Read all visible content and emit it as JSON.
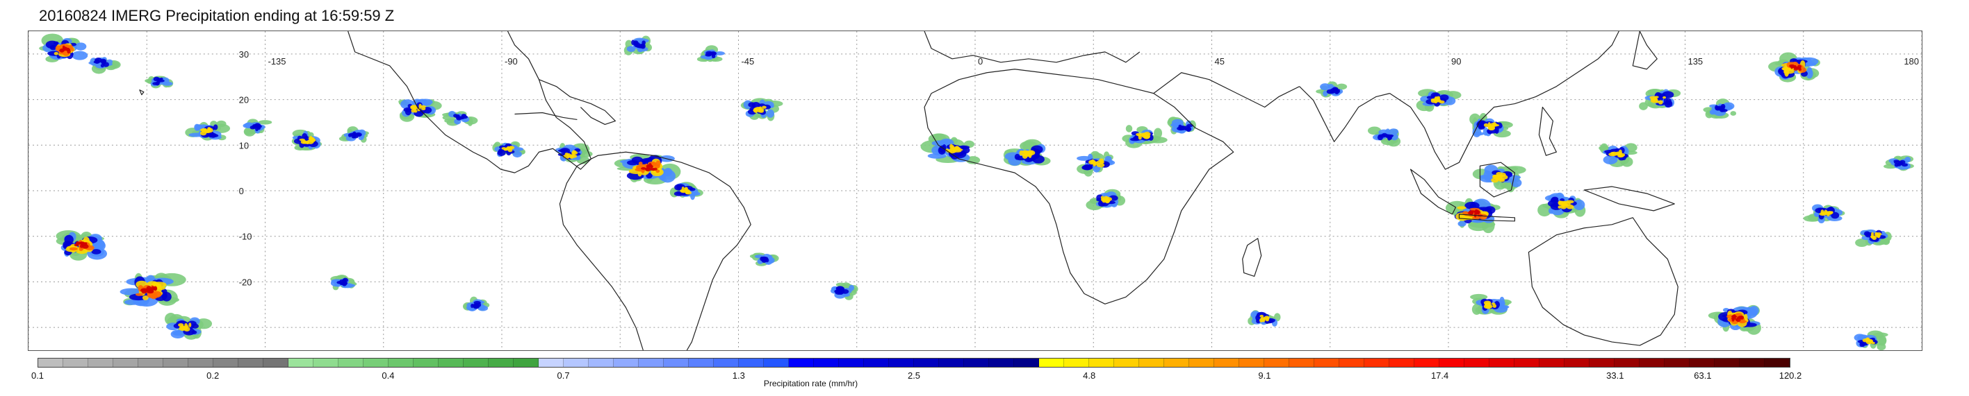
{
  "title": "20160824 IMERG Precipitation ending at 16:59:59 Z",
  "map": {
    "lon_labels": [
      {
        "text": "-135",
        "lon": -135
      },
      {
        "text": "-90",
        "lon": -90
      },
      {
        "text": "-45",
        "lon": -45
      },
      {
        "text": "0",
        "lon": 0
      },
      {
        "text": "45",
        "lon": 45
      },
      {
        "text": "90",
        "lon": 90
      },
      {
        "text": "135",
        "lon": 135
      },
      {
        "text": "180",
        "lon": 180
      }
    ],
    "lat_labels": [
      {
        "text": "30",
        "lat": 30
      },
      {
        "text": "20",
        "lat": 20
      },
      {
        "text": "10",
        "lat": 10
      },
      {
        "text": "0",
        "lat": 0
      },
      {
        "text": "-10",
        "lat": -10
      },
      {
        "text": "-20",
        "lat": -20
      }
    ],
    "lon_range": [
      -180,
      180
    ],
    "lat_range": [
      -35,
      35
    ],
    "grid": "dotted",
    "colors": {
      "coastline": "#222222",
      "grid": "#9a9a9a",
      "background": "#ffffff"
    }
  },
  "colorbar": {
    "title": "Precipitation rate (mm/hr)",
    "tick_labels": [
      {
        "text": "0.1",
        "frac": 0.0
      },
      {
        "text": "0.2",
        "frac": 0.1
      },
      {
        "text": "0.4",
        "frac": 0.2
      },
      {
        "text": "0.7",
        "frac": 0.3
      },
      {
        "text": "1.3",
        "frac": 0.4
      },
      {
        "text": "2.5",
        "frac": 0.5
      },
      {
        "text": "4.8",
        "frac": 0.6
      },
      {
        "text": "9.1",
        "frac": 0.7
      },
      {
        "text": "17.4",
        "frac": 0.8
      },
      {
        "text": "33.1",
        "frac": 0.9
      },
      {
        "text": "63.1",
        "frac": 0.95
      },
      {
        "text": "120.2",
        "frac": 1.0
      }
    ],
    "colors": [
      "#bdbdbd",
      "#b5b5b5",
      "#adadad",
      "#a5a5a5",
      "#9d9d9d",
      "#959595",
      "#8d8d8d",
      "#858585",
      "#7d7d7d",
      "#757575",
      "#9be39b",
      "#8fdc8f",
      "#83d583",
      "#77ce77",
      "#6cc76c",
      "#61c061",
      "#57b957",
      "#4eb24e",
      "#46ab46",
      "#3fa43f",
      "#c6d3ff",
      "#b4c6ff",
      "#a2b8ff",
      "#90aaff",
      "#7e9cff",
      "#6c8eff",
      "#5a80ff",
      "#4872ff",
      "#3664ff",
      "#2456ff",
      "#0000ff",
      "#0000f2",
      "#0000e5",
      "#0000d8",
      "#0000cb",
      "#0000be",
      "#0000b1",
      "#0000a4",
      "#000097",
      "#00008a",
      "#ffff00",
      "#ffef00",
      "#ffdf00",
      "#ffcf00",
      "#ffbf00",
      "#ffaf00",
      "#ff9f00",
      "#ff8f00",
      "#ff7f00",
      "#ff6f00",
      "#ff5f00",
      "#ff5000",
      "#ff4000",
      "#ff3000",
      "#ff2000",
      "#ff1000",
      "#f80000",
      "#ee0000",
      "#e40000",
      "#da0000",
      "#c80000",
      "#b80000",
      "#a80000",
      "#980000",
      "#880000",
      "#7a0000",
      "#6e0000",
      "#620000",
      "#560000",
      "#4a0000"
    ]
  },
  "precip_clusters": [
    {
      "lon": -173,
      "lat": 31,
      "r": 18,
      "i": 4
    },
    {
      "lon": -166,
      "lat": 28,
      "r": 12,
      "i": 2
    },
    {
      "lon": -155,
      "lat": 24,
      "r": 10,
      "i": 2
    },
    {
      "lon": -146,
      "lat": 13,
      "r": 14,
      "i": 3
    },
    {
      "lon": -137,
      "lat": 14,
      "r": 10,
      "i": 2
    },
    {
      "lon": -127,
      "lat": 11,
      "r": 14,
      "i": 3
    },
    {
      "lon": -118,
      "lat": 12,
      "r": 10,
      "i": 2
    },
    {
      "lon": -106,
      "lat": 18,
      "r": 16,
      "i": 3
    },
    {
      "lon": -98,
      "lat": 16,
      "r": 10,
      "i": 2
    },
    {
      "lon": -89,
      "lat": 9,
      "r": 12,
      "i": 3
    },
    {
      "lon": -77,
      "lat": 8,
      "r": 14,
      "i": 3
    },
    {
      "lon": -62,
      "lat": 5,
      "r": 22,
      "i": 4
    },
    {
      "lon": -55,
      "lat": 0,
      "r": 12,
      "i": 3
    },
    {
      "lon": -50,
      "lat": 30,
      "r": 10,
      "i": 2
    },
    {
      "lon": -64,
      "lat": 32,
      "r": 12,
      "i": 2
    },
    {
      "lon": -41,
      "lat": 18,
      "r": 14,
      "i": 3
    },
    {
      "lon": -4,
      "lat": 9,
      "r": 20,
      "i": 3
    },
    {
      "lon": 10,
      "lat": 8,
      "r": 18,
      "i": 3
    },
    {
      "lon": 23,
      "lat": 6,
      "r": 16,
      "i": 3
    },
    {
      "lon": 32,
      "lat": 12,
      "r": 14,
      "i": 3
    },
    {
      "lon": 40,
      "lat": 14,
      "r": 12,
      "i": 2
    },
    {
      "lon": 25,
      "lat": -2,
      "r": 12,
      "i": 3
    },
    {
      "lon": 68,
      "lat": 22,
      "r": 10,
      "i": 2
    },
    {
      "lon": 78,
      "lat": 12,
      "r": 12,
      "i": 2
    },
    {
      "lon": 88,
      "lat": 20,
      "r": 14,
      "i": 3
    },
    {
      "lon": 98,
      "lat": 14,
      "r": 16,
      "i": 3
    },
    {
      "lon": 100,
      "lat": 3,
      "r": 18,
      "i": 3
    },
    {
      "lon": 95,
      "lat": -5,
      "r": 22,
      "i": 4
    },
    {
      "lon": 112,
      "lat": -3,
      "r": 18,
      "i": 3
    },
    {
      "lon": 122,
      "lat": 8,
      "r": 14,
      "i": 3
    },
    {
      "lon": 130,
      "lat": 20,
      "r": 16,
      "i": 3
    },
    {
      "lon": 142,
      "lat": 18,
      "r": 12,
      "i": 2
    },
    {
      "lon": 156,
      "lat": 27,
      "r": 18,
      "i": 4
    },
    {
      "lon": 162,
      "lat": -5,
      "r": 14,
      "i": 3
    },
    {
      "lon": 171,
      "lat": -10,
      "r": 12,
      "i": 3
    },
    {
      "lon": 176,
      "lat": 6,
      "r": 10,
      "i": 2
    },
    {
      "lon": -170,
      "lat": -12,
      "r": 20,
      "i": 4
    },
    {
      "lon": -157,
      "lat": -22,
      "r": 24,
      "i": 4
    },
    {
      "lon": -150,
      "lat": -30,
      "r": 16,
      "i": 3
    },
    {
      "lon": -120,
      "lat": -20,
      "r": 10,
      "i": 2
    },
    {
      "lon": -95,
      "lat": -25,
      "r": 10,
      "i": 2
    },
    {
      "lon": -40,
      "lat": -15,
      "r": 8,
      "i": 2
    },
    {
      "lon": -25,
      "lat": -22,
      "r": 12,
      "i": 2
    },
    {
      "lon": 55,
      "lat": -28,
      "r": 12,
      "i": 3
    },
    {
      "lon": 98,
      "lat": -25,
      "r": 14,
      "i": 3
    },
    {
      "lon": 145,
      "lat": -28,
      "r": 18,
      "i": 4
    },
    {
      "lon": 170,
      "lat": -33,
      "r": 12,
      "i": 3
    }
  ]
}
